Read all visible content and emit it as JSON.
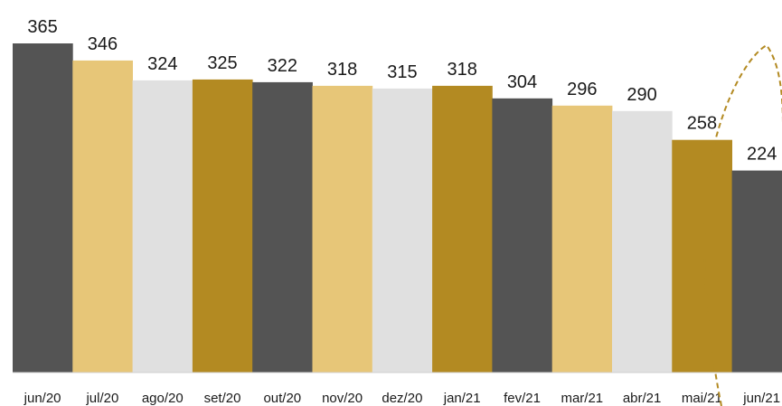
{
  "chart_data": {
    "type": "bar",
    "categories": [
      "jun/20",
      "jul/20",
      "ago/20",
      "set/20",
      "out/20",
      "nov/20",
      "dez/20",
      "jan/21",
      "fev/21",
      "mar/21",
      "abr/21",
      "mai/21",
      "jun/21"
    ],
    "values": [
      365,
      346,
      324,
      325,
      322,
      318,
      315,
      318,
      304,
      296,
      290,
      258,
      224
    ],
    "colors": [
      "#545454",
      "#E7C678",
      "#E0E0E0",
      "#B38A22",
      "#545454",
      "#E7C678",
      "#E0E0E0",
      "#B38A22",
      "#545454",
      "#E7C678",
      "#E0E0E0",
      "#B38A22",
      "#545454"
    ],
    "highlight_annotation": {
      "style": "dashed-ellipse",
      "color": "#B38A22",
      "categories": [
        "mai/21",
        "jun/21"
      ]
    },
    "title": "",
    "xlabel": "",
    "ylabel": "",
    "ylim": [
      0,
      365
    ],
    "grid": false,
    "legend": "none"
  }
}
